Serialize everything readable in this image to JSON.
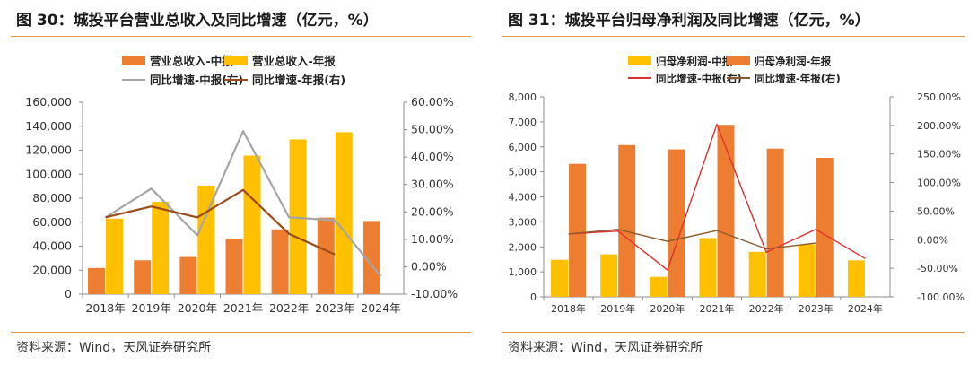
{
  "figures": [
    {
      "title": "图 30：城投平台营业总收入及同比增速（亿元，%）",
      "source": "资料来源：Wind，天风证券研究所",
      "chart_data": {
        "type": "bar",
        "categories": [
          "2018年",
          "2019年",
          "2020年",
          "2021年",
          "2022年",
          "2023年",
          "2024年"
        ],
        "series": [
          {
            "name": "营业总收入-中报",
            "kind": "bar",
            "axis": "left",
            "color": "#ED7D31",
            "values": [
              21800,
              28200,
              31000,
              46000,
              54000,
              63800,
              61000
            ]
          },
          {
            "name": "营业总收入-年报",
            "kind": "bar",
            "axis": "left",
            "color": "#FFC000",
            "values": [
              63000,
              77000,
              90500,
              115500,
              129000,
              135000,
              null
            ]
          },
          {
            "name": "同比增速-中报(右)",
            "kind": "line",
            "axis": "right",
            "color": "#A5A5A5",
            "values": [
              18.0,
              28.5,
              11.5,
              49.5,
              18.0,
              17.0,
              -3.5
            ]
          },
          {
            "name": "同比增速-年报(右)",
            "kind": "line",
            "axis": "right",
            "color": "#9C4A1A",
            "values": [
              18.0,
              22.0,
              18.0,
              28.0,
              12.0,
              4.5,
              null
            ]
          }
        ],
        "y_left": {
          "min": 0,
          "max": 160000,
          "step": 20000,
          "ticks": [
            "0",
            "20,000",
            "40,000",
            "60,000",
            "80,000",
            "100,000",
            "120,000",
            "140,000",
            "160,000"
          ]
        },
        "y_right": {
          "min": -10,
          "max": 60,
          "step": 10,
          "ticks": [
            "-10.00%",
            "0.00%",
            "10.00%",
            "20.00%",
            "30.00%",
            "40.00%",
            "50.00%",
            "60.00%"
          ]
        },
        "legend": "top",
        "grid": false
      }
    },
    {
      "title": "图 31：城投平台归母净利润及同比增速（亿元，%）",
      "source": "资料来源：Wind，天风证券研究所",
      "chart_data": {
        "type": "bar",
        "categories": [
          "2018年",
          "2019年",
          "2020年",
          "2021年",
          "2022年",
          "2023年",
          "2024年"
        ],
        "series": [
          {
            "name": "归母净利润-中报",
            "kind": "bar",
            "axis": "left",
            "color": "#FFC000",
            "values": [
              1480,
              1700,
              800,
              2350,
              1800,
              2100,
              1460
            ]
          },
          {
            "name": "归母净利润-年报",
            "kind": "bar",
            "axis": "left",
            "color": "#ED7D31",
            "values": [
              5320,
              6070,
              5900,
              6880,
              5930,
              5560,
              null
            ]
          },
          {
            "name": "同比增速-中报(右)",
            "kind": "line",
            "axis": "right",
            "color": "#E03030",
            "values": [
              10,
              15,
              -53,
              202,
              -22,
              18,
              -33
            ]
          },
          {
            "name": "同比增速-年报(右)",
            "kind": "line",
            "axis": "right",
            "color": "#8B5A2B",
            "values": [
              10,
              18,
              -3,
              16,
              -16,
              -6,
              null
            ]
          }
        ],
        "y_left": {
          "min": 0,
          "max": 8000,
          "step": 1000,
          "ticks": [
            "0",
            "1,000",
            "2,000",
            "3,000",
            "4,000",
            "5,000",
            "6,000",
            "7,000",
            "8,000"
          ]
        },
        "y_right": {
          "min": -100,
          "max": 250,
          "step": 50,
          "ticks": [
            "-100.00%",
            "-50.00%",
            "0.00%",
            "50.00%",
            "100.00%",
            "150.00%",
            "200.00%",
            "250.00%"
          ]
        },
        "legend": "top",
        "grid": false
      }
    }
  ]
}
